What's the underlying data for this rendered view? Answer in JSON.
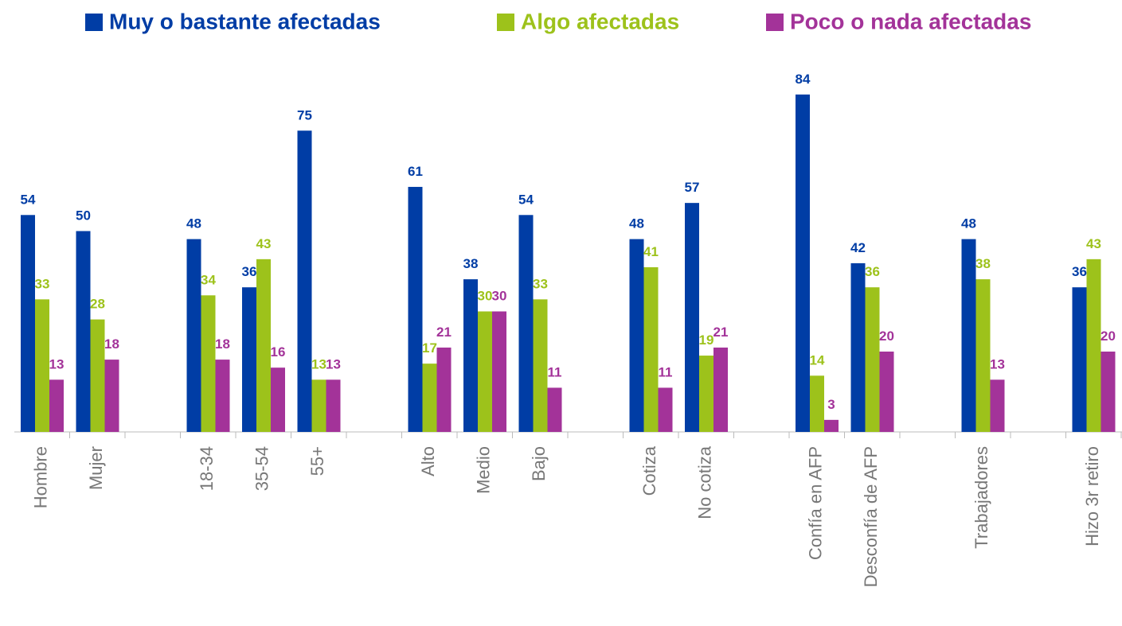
{
  "chart_data": {
    "type": "bar",
    "categories": [
      "Hombre",
      "Mujer",
      null,
      "18-34",
      "35-54",
      "55+",
      null,
      "Alto",
      "Medio",
      "Bajo",
      null,
      "Cotiza",
      "No cotiza",
      null,
      "Confía en AFP",
      "Desconfía de AFP",
      null,
      "Trabajadores",
      null,
      "Hizo 3r retiro"
    ],
    "series": [
      {
        "name": "Muy o bastante afectadas",
        "color": "#003da5",
        "values": [
          54,
          50,
          null,
          48,
          36,
          75,
          null,
          61,
          38,
          54,
          null,
          48,
          57,
          null,
          84,
          42,
          null,
          48,
          null,
          36
        ]
      },
      {
        "name": "Algo afectadas",
        "color": "#9dc21b",
        "values": [
          33,
          28,
          null,
          34,
          43,
          13,
          null,
          17,
          30,
          33,
          null,
          41,
          19,
          null,
          14,
          36,
          null,
          38,
          null,
          43
        ]
      },
      {
        "name": "Poco o nada afectadas",
        "color": "#a33399",
        "values": [
          13,
          18,
          null,
          18,
          16,
          13,
          null,
          21,
          30,
          11,
          null,
          11,
          21,
          null,
          3,
          20,
          null,
          13,
          null,
          20
        ]
      }
    ],
    "ylim": [
      0,
      100
    ],
    "legend": "top"
  }
}
